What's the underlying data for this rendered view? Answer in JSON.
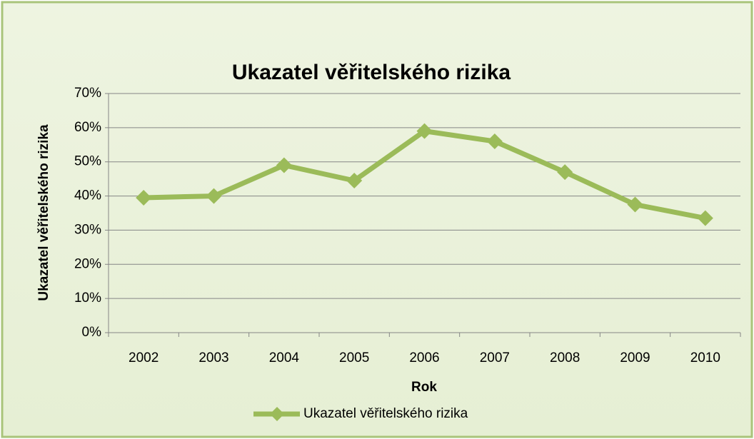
{
  "chart_data": {
    "type": "line",
    "title": "Ukazatel věřitelského rizika",
    "x_label": "Rok",
    "y_label": "Ukazatel věřitelského rizika",
    "categories": [
      "2002",
      "2003",
      "2004",
      "2005",
      "2006",
      "2007",
      "2008",
      "2009",
      "2010"
    ],
    "series": [
      {
        "name": "Ukazatel věřitelského rizika",
        "color": "#9bbb59",
        "values": [
          39.5,
          40,
          49,
          44.5,
          59,
          56,
          47,
          37.5,
          33.5
        ]
      }
    ],
    "ylim": [
      0,
      70
    ],
    "yticks": [
      {
        "value": 0,
        "label": "0%"
      },
      {
        "value": 10,
        "label": "10%"
      },
      {
        "value": 20,
        "label": "20%"
      },
      {
        "value": 30,
        "label": "30%"
      },
      {
        "value": 40,
        "label": "40%"
      },
      {
        "value": 50,
        "label": "50%"
      },
      {
        "value": 60,
        "label": "60%"
      },
      {
        "value": 70,
        "label": "70%"
      }
    ],
    "grid": true,
    "legend": "bottom"
  }
}
